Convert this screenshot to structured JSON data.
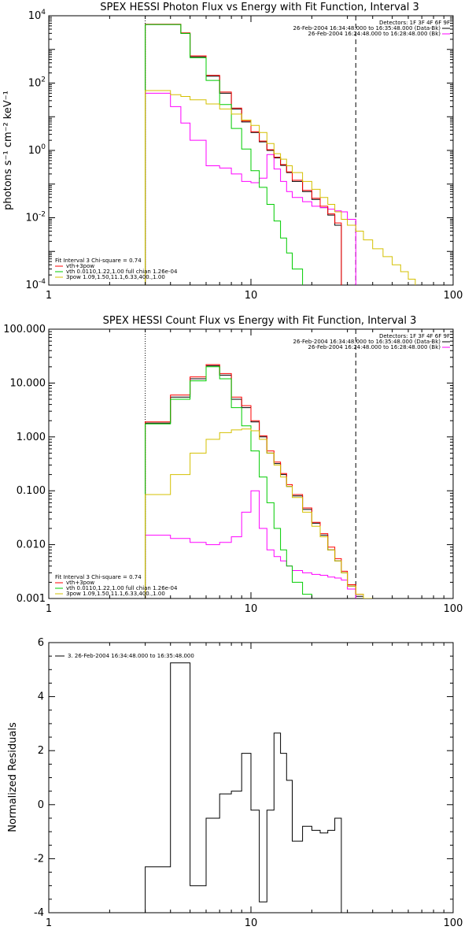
{
  "chart_data": [
    {
      "type": "line",
      "title": "SPEX HESSI Photon Flux vs Energy with Fit Function, Interval 3",
      "xlabel": "",
      "ylabel": "photons s⁻¹ cm⁻² keV⁻¹",
      "xscale": "log",
      "yscale": "log",
      "xlim": [
        1,
        100
      ],
      "ylim": [
        0.0001,
        10000
      ],
      "x_ticks": [
        "1",
        "10",
        "100"
      ],
      "y_ticks": [
        {
          "base": "10",
          "exp": "-4"
        },
        {
          "base": "10",
          "exp": "-2"
        },
        {
          "base": "10",
          "exp": "0"
        },
        {
          "base": "10",
          "exp": "2"
        },
        {
          "base": "10",
          "exp": "4"
        }
      ],
      "legend_top_right": [
        "Detectors: 1F 3F 4F 6F 9F",
        "26-Feb-2004 16:34:48.000 to 16:35:48.000 (Data-Bk)",
        "26-Feb-2004 16:24:48.000 to 16:28:48.000 (Bk)"
      ],
      "legend_bottom_left": [
        "Fit Interval 3   Chi-square = 0.74",
        "vth+3pow",
        "vth 0.0110,1.22,1.00  full chian 1.26e-04",
        "3pow 1.09,1.50,11.1,6.33,400.,1.00"
      ],
      "vline_dotted_x": 3,
      "vline_dashed_x": 33,
      "bin_edges": [
        3,
        3.5,
        4,
        4.5,
        5,
        6,
        7,
        8,
        9,
        10,
        11,
        12,
        13,
        14,
        15,
        16,
        18,
        20,
        22,
        24,
        26,
        28,
        30,
        33,
        36,
        40,
        45,
        50,
        55,
        60,
        65
      ],
      "series": [
        {
          "name": "Data-Bk",
          "color": "#000000",
          "values": [
            5500,
            5500,
            5500,
            3000,
            600,
            160,
            50,
            17,
            7,
            3.4,
            1.8,
            1.0,
            0.6,
            0.36,
            0.22,
            0.12,
            0.06,
            0.035,
            0.02,
            0.012,
            0.006,
            null,
            null,
            null,
            null,
            null,
            null,
            null,
            null,
            null
          ]
        },
        {
          "name": "Bk",
          "color": "#ff00ff",
          "values": [
            50,
            50,
            20,
            6.5,
            2,
            0.35,
            0.3,
            0.2,
            0.12,
            0.11,
            0.15,
            0.75,
            0.28,
            0.12,
            0.06,
            0.04,
            0.03,
            0.022,
            0.02,
            0.018,
            0.016,
            0.015,
            0.009,
            null,
            null,
            null,
            null,
            null,
            null,
            null
          ]
        },
        {
          "name": "vth+3pow",
          "color": "#ff0000",
          "values": [
            5600,
            5600,
            5600,
            3100,
            640,
            170,
            54,
            18,
            7.5,
            3.6,
            1.9,
            1.05,
            0.63,
            0.38,
            0.23,
            0.13,
            0.065,
            0.038,
            0.022,
            0.013,
            0.007,
            null,
            null,
            null,
            null,
            null,
            null,
            null,
            null,
            null
          ]
        },
        {
          "name": "vth",
          "color": "#00cc00",
          "values": [
            5500,
            5500,
            5500,
            3000,
            570,
            120,
            23,
            4.5,
            1.1,
            0.25,
            0.08,
            0.025,
            0.008,
            0.0025,
            0.0009,
            0.0003,
            9e-05,
            null,
            null,
            null,
            null,
            null,
            null,
            null,
            null,
            null,
            null,
            null,
            null,
            null
          ]
        },
        {
          "name": "3pow",
          "color": "#d4c000",
          "values": [
            60,
            60,
            45,
            40,
            32,
            24,
            17,
            12,
            8,
            5.5,
            3.4,
            1.6,
            0.8,
            0.55,
            0.35,
            0.22,
            0.12,
            0.07,
            0.04,
            0.025,
            0.015,
            0.009,
            0.006,
            0.004,
            0.0022,
            0.0012,
            0.0007,
            0.0004,
            0.00025,
            0.00015
          ]
        }
      ]
    },
    {
      "type": "line",
      "title": "SPEX HESSI Count Flux vs Energy with Fit Function, Interval 3",
      "xlabel": "",
      "ylabel": "",
      "xscale": "log",
      "yscale": "log",
      "xlim": [
        1,
        100
      ],
      "ylim": [
        0.001,
        100
      ],
      "x_ticks": [
        "1",
        "10",
        "100"
      ],
      "y_ticks": [
        "0.001",
        "0.010",
        "0.100",
        "1.000",
        "10.000",
        "100.000"
      ],
      "legend_top_right": [
        "Detectors: 1F 3F 4F 6F 9F",
        "26-Feb-2004 16:34:48.000 to 16:35:48.000 (Data-Bk)",
        "26-Feb-2004 16:24:48.000 to 16:28:48.000 (Bk)"
      ],
      "legend_bottom_left": [
        "Fit Interval 3   Chi-square = 0.74",
        "vth+3pow",
        "vth 0.0110,1.22,1.00  full chian 1.26e-04",
        "3pow 1.09,1.50,11.1,6.33,400.,1.00"
      ],
      "vline_dotted_x": 3,
      "vline_dashed_x": 33,
      "bin_edges": [
        3,
        4,
        5,
        6,
        7,
        8,
        9,
        10,
        11,
        12,
        13,
        14,
        15,
        16,
        18,
        20,
        22,
        24,
        26,
        28,
        30,
        33,
        36,
        40
      ],
      "series": [
        {
          "name": "Data-Bk",
          "color": "#000000",
          "values": [
            1.8,
            5.5,
            12,
            21,
            14,
            5,
            3.5,
            1.9,
            1.0,
            0.5,
            0.32,
            0.2,
            0.12,
            0.08,
            0.045,
            0.025,
            0.015,
            0.008,
            0.005,
            0.003,
            0.0017,
            0.0011,
            0.001
          ]
        },
        {
          "name": "Bk",
          "color": "#ff00ff",
          "values": [
            0.015,
            0.013,
            0.011,
            0.01,
            0.011,
            0.014,
            0.04,
            0.1,
            0.02,
            0.008,
            0.006,
            0.005,
            0.004,
            0.0033,
            0.003,
            0.0028,
            0.0027,
            0.0025,
            0.0024,
            0.0022,
            0.0015,
            null,
            null
          ]
        },
        {
          "name": "vth+3pow",
          "color": "#ff0000",
          "values": [
            1.9,
            6,
            13,
            22,
            15,
            5.5,
            3.8,
            2.0,
            1.05,
            0.55,
            0.34,
            0.21,
            0.13,
            0.085,
            0.048,
            0.026,
            0.016,
            0.009,
            0.0055,
            0.0032,
            0.0018,
            0.0012,
            0.001
          ]
        },
        {
          "name": "vth",
          "color": "#00cc00",
          "values": [
            1.75,
            5,
            11,
            20,
            12,
            3.5,
            1.6,
            0.55,
            0.18,
            0.06,
            0.02,
            0.008,
            0.004,
            0.002,
            0.0012,
            null,
            null,
            null,
            null,
            null,
            null,
            null,
            null
          ]
        },
        {
          "name": "3pow",
          "color": "#d4c000",
          "values": [
            0.085,
            0.2,
            0.5,
            0.9,
            1.2,
            1.35,
            1.4,
            1.3,
            0.9,
            0.5,
            0.3,
            0.18,
            0.12,
            0.075,
            0.04,
            0.022,
            0.014,
            0.008,
            0.005,
            0.003,
            0.0017,
            0.0012,
            0.001
          ]
        }
      ]
    },
    {
      "type": "line",
      "title": "",
      "xlabel": "",
      "ylabel": "Normalized Residuals",
      "xscale": "log",
      "yscale": "linear",
      "xlim": [
        1,
        100
      ],
      "ylim": [
        -4,
        6
      ],
      "x_ticks": [
        "1",
        "10",
        "100"
      ],
      "y_ticks": [
        "-4",
        "-2",
        "0",
        "2",
        "4",
        "6"
      ],
      "legend": "3. 26-Feb-2004 16:34:48.000 to 16:35:48.000",
      "bin_edges": [
        3,
        4,
        5,
        6,
        7,
        8,
        9,
        10,
        11,
        12,
        13,
        14,
        15,
        16,
        18,
        20,
        22,
        24,
        26,
        28,
        30,
        33
      ],
      "series": [
        {
          "name": "",
          "color": "#000000",
          "values": [
            -2.3,
            5.25,
            -3.0,
            -0.5,
            0.4,
            0.5,
            1.9,
            -0.2,
            -3.6,
            -0.2,
            2.65,
            1.9,
            0.9,
            -1.35,
            -0.8,
            -0.95,
            -1.05,
            -0.95,
            -0.5,
            -4.5,
            -4.5
          ]
        }
      ]
    }
  ]
}
